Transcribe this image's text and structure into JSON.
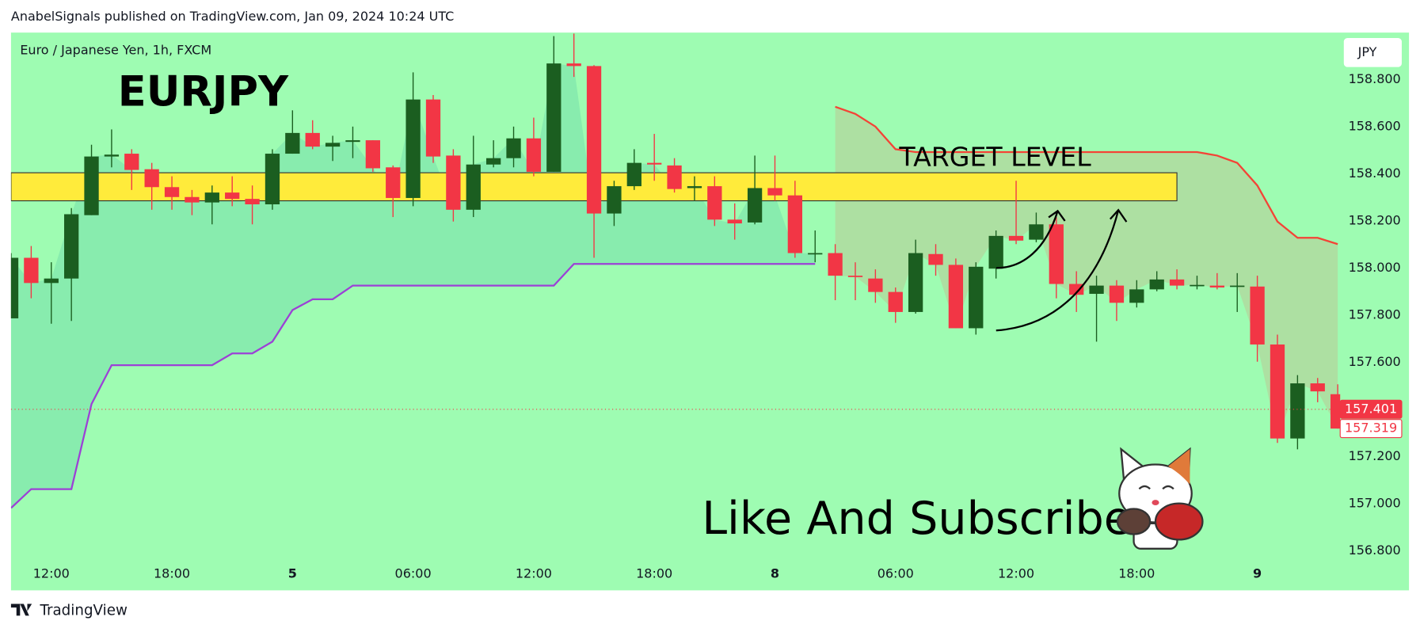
{
  "header": {
    "publisher": "AnabelSignals published on TradingView.com, Jan 09, 2024 10:24 UTC",
    "footer": "TradingView"
  },
  "chart_data": {
    "type": "candlestick",
    "title": "EURJPY",
    "subtitle": "Euro / Japanese Yen, 1h, FXCM",
    "currency": "JPY",
    "annotations": [
      "TARGET LEVEL",
      "Like And Subscribe"
    ],
    "background": "#9efcb2",
    "categories": [
      null,
      null,
      "12:00",
      null,
      null,
      null,
      null,
      null,
      "18:00",
      null,
      null,
      null,
      null,
      null,
      "5",
      null,
      null,
      null,
      null,
      null,
      "06:00",
      null,
      null,
      null,
      null,
      null,
      "12:00",
      null,
      null,
      null,
      null,
      null,
      "18:00",
      null,
      null,
      null,
      null,
      null,
      "8",
      null,
      null,
      null,
      null,
      null,
      "06:00",
      null,
      null,
      null,
      null,
      null,
      "12:00",
      null,
      null,
      null,
      null,
      null,
      "18:00",
      null,
      null,
      null,
      null,
      null,
      "9",
      null,
      null,
      null,
      null
    ],
    "open": [
      157.787,
      158.044,
      157.937,
      157.956,
      158.225,
      158.474,
      158.486,
      158.42,
      158.344,
      158.302,
      158.279,
      158.321,
      158.294,
      158.271,
      158.486,
      158.574,
      158.516,
      158.536,
      158.543,
      158.428,
      158.298,
      158.716,
      158.478,
      158.248,
      158.44,
      158.467,
      158.551,
      158.409,
      158.869,
      158.858,
      158.232,
      158.348,
      158.447,
      158.436,
      158.34,
      158.348,
      158.206,
      158.194,
      158.34,
      158.309,
      158.064,
      158.064,
      157.968,
      157.956,
      157.899,
      157.814,
      158.06,
      158.014,
      157.745,
      157.998,
      158.137,
      158.121,
      158.186,
      157.933,
      157.891,
      157.926,
      157.853,
      157.91,
      157.952,
      157.926,
      157.926,
      157.926,
      157.922,
      157.676,
      157.277,
      157.511,
      157.465
    ],
    "high": [
      158.064,
      158.094,
      158.025,
      158.255,
      158.524,
      158.589,
      158.505,
      158.447,
      158.39,
      158.332,
      158.351,
      158.39,
      158.351,
      158.505,
      158.67,
      158.628,
      158.562,
      158.601,
      158.543,
      158.436,
      158.831,
      158.735,
      158.505,
      158.562,
      158.543,
      158.601,
      158.639,
      158.985,
      158.996,
      158.862,
      158.371,
      158.505,
      158.57,
      158.467,
      158.39,
      158.39,
      158.275,
      158.478,
      158.478,
      158.371,
      158.16,
      158.102,
      158.025,
      157.995,
      157.918,
      158.121,
      158.102,
      158.041,
      158.025,
      158.16,
      158.371,
      158.236,
      158.217,
      157.987,
      157.968,
      157.949,
      157.949,
      157.987,
      157.995,
      157.968,
      157.979,
      157.979,
      157.968,
      157.718,
      157.546,
      157.534,
      157.507
    ],
    "low": [
      157.787,
      157.872,
      157.764,
      157.776,
      158.225,
      158.428,
      158.332,
      158.248,
      158.248,
      158.225,
      158.186,
      158.263,
      158.186,
      158.248,
      158.486,
      158.505,
      158.455,
      158.467,
      158.409,
      158.217,
      158.263,
      158.447,
      158.198,
      158.217,
      158.428,
      158.428,
      158.39,
      158.409,
      158.812,
      158.044,
      158.179,
      158.332,
      158.371,
      158.321,
      158.286,
      158.179,
      158.121,
      158.186,
      158.286,
      158.044,
      158.025,
      157.864,
      157.864,
      157.853,
      157.768,
      157.807,
      157.968,
      157.745,
      157.718,
      157.956,
      158.102,
      158.11,
      157.872,
      157.814,
      157.688,
      157.776,
      157.833,
      157.902,
      157.91,
      157.91,
      157.91,
      157.814,
      157.603,
      157.258,
      157.231,
      157.431,
      157.319
    ],
    "close": [
      158.044,
      157.937,
      157.956,
      158.229,
      158.474,
      158.482,
      158.417,
      158.344,
      158.302,
      158.279,
      158.321,
      158.294,
      158.271,
      158.486,
      158.574,
      158.516,
      158.532,
      158.543,
      158.424,
      158.298,
      158.716,
      158.474,
      158.248,
      158.44,
      158.467,
      158.551,
      158.409,
      158.869,
      158.858,
      158.232,
      158.348,
      158.447,
      158.44,
      158.336,
      158.348,
      158.206,
      158.19,
      158.34,
      158.309,
      158.064,
      158.064,
      157.968,
      157.964,
      157.899,
      157.814,
      158.064,
      158.014,
      157.745,
      158.006,
      158.137,
      158.117,
      158.186,
      157.933,
      157.887,
      157.926,
      157.853,
      157.91,
      157.952,
      157.926,
      157.929,
      157.918,
      157.926,
      157.676,
      157.277,
      157.511,
      157.477,
      157.319
    ],
    "up_color": "#1b5e20",
    "down_color": "#f23645",
    "lines": [
      {
        "color": "#9c40d6",
        "fill": "rgba(38,166,154,0.18)",
        "values": [
          156.982,
          157.062,
          157.062,
          157.062,
          157.423,
          157.588,
          157.588,
          157.588,
          157.588,
          157.588,
          157.588,
          157.638,
          157.638,
          157.688,
          157.822,
          157.868,
          157.868,
          157.926,
          157.926,
          157.926,
          157.926,
          157.926,
          157.926,
          157.926,
          157.926,
          157.926,
          157.926,
          157.926,
          158.018,
          158.018,
          158.018,
          158.018,
          158.018,
          158.018,
          158.018,
          158.018,
          158.018,
          158.018,
          158.018,
          158.018,
          158.018,
          null,
          null,
          null,
          null,
          null,
          null,
          null,
          null,
          null,
          null,
          null,
          null,
          null,
          null,
          null,
          null,
          null,
          null,
          null,
          null,
          null,
          null,
          null,
          null,
          null,
          null
        ]
      },
      {
        "color": "#f44336",
        "fill": "rgba(255,82,82,0.16)",
        "values": [
          null,
          null,
          null,
          null,
          null,
          null,
          null,
          null,
          null,
          null,
          null,
          null,
          null,
          null,
          null,
          null,
          null,
          null,
          null,
          null,
          null,
          null,
          null,
          null,
          null,
          null,
          null,
          null,
          null,
          null,
          null,
          null,
          null,
          null,
          null,
          null,
          null,
          null,
          null,
          null,
          null,
          158.685,
          158.655,
          158.601,
          158.505,
          158.493,
          158.493,
          158.493,
          158.493,
          158.493,
          158.493,
          158.493,
          158.493,
          158.493,
          158.493,
          158.493,
          158.493,
          158.493,
          158.493,
          158.493,
          158.478,
          158.447,
          158.351,
          158.198,
          158.129,
          158.129,
          158.102
        ]
      }
    ],
    "zone": {
      "range": [
        158.286,
        158.405
      ],
      "color": "#ffeb3b"
    },
    "price_labels": [
      157.401,
      157.319
    ],
    "ylim": [
      156.64,
      159.0
    ],
    "yticks": [
      {
        "value": 156.8,
        "label": "156.800"
      },
      {
        "value": 157.0,
        "label": "157.000"
      },
      {
        "value": 157.2,
        "label": "157.200"
      },
      {
        "value": 157.4,
        "label": "157.400"
      },
      {
        "value": 157.6,
        "label": "157.600"
      },
      {
        "value": 157.8,
        "label": "157.800"
      },
      {
        "value": 158.0,
        "label": "158.000"
      },
      {
        "value": 158.2,
        "label": "158.200"
      },
      {
        "value": 158.4,
        "label": "158.400"
      },
      {
        "value": 158.6,
        "label": "158.600"
      },
      {
        "value": 158.8,
        "label": "158.800"
      }
    ]
  }
}
